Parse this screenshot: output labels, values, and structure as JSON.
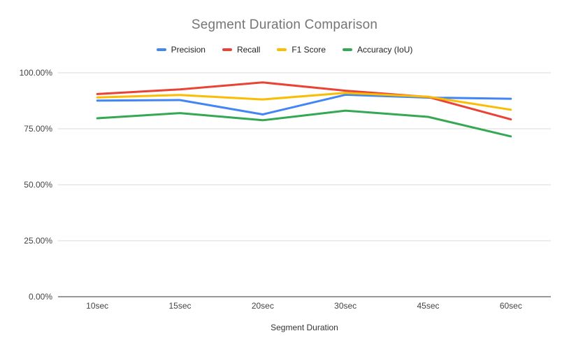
{
  "chart_data": {
    "type": "line",
    "title": "Segment Duration Comparison",
    "xlabel": "Segment Duration",
    "ylabel": "",
    "categories": [
      "10sec",
      "15sec",
      "20sec",
      "30sec",
      "45sec",
      "60sec"
    ],
    "series": [
      {
        "name": "Precision",
        "color": "#4285F4",
        "values": [
          87.6,
          87.8,
          81.4,
          90.2,
          88.9,
          88.4
        ]
      },
      {
        "name": "Recall",
        "color": "#EA4335",
        "values": [
          90.5,
          92.6,
          95.7,
          92.0,
          89.2,
          79.2
        ]
      },
      {
        "name": "F1 Score",
        "color": "#FBBC04",
        "values": [
          89.0,
          90.1,
          88.1,
          91.0,
          89.3,
          83.5
        ]
      },
      {
        "name": "Accuracy (IoU)",
        "color": "#34A853",
        "values": [
          79.7,
          82.0,
          78.8,
          83.1,
          80.3,
          71.6
        ]
      }
    ],
    "y_axis": {
      "min": 0,
      "max": 100,
      "tick_values": [
        0,
        25,
        50,
        75,
        100
      ],
      "tick_labels": [
        "0.00%",
        "25.00%",
        "50.00%",
        "75.00%",
        "100.00%"
      ]
    },
    "legend_position": "top",
    "grid": true
  },
  "appearance": {
    "background": "#ffffff",
    "title_color": "#757575",
    "legend_text_color": "#222222",
    "tick_label_color": "#444444",
    "axis_title_color": "#333333",
    "gridline_color": "#d9d9d9",
    "baseline_color": "#333333"
  }
}
